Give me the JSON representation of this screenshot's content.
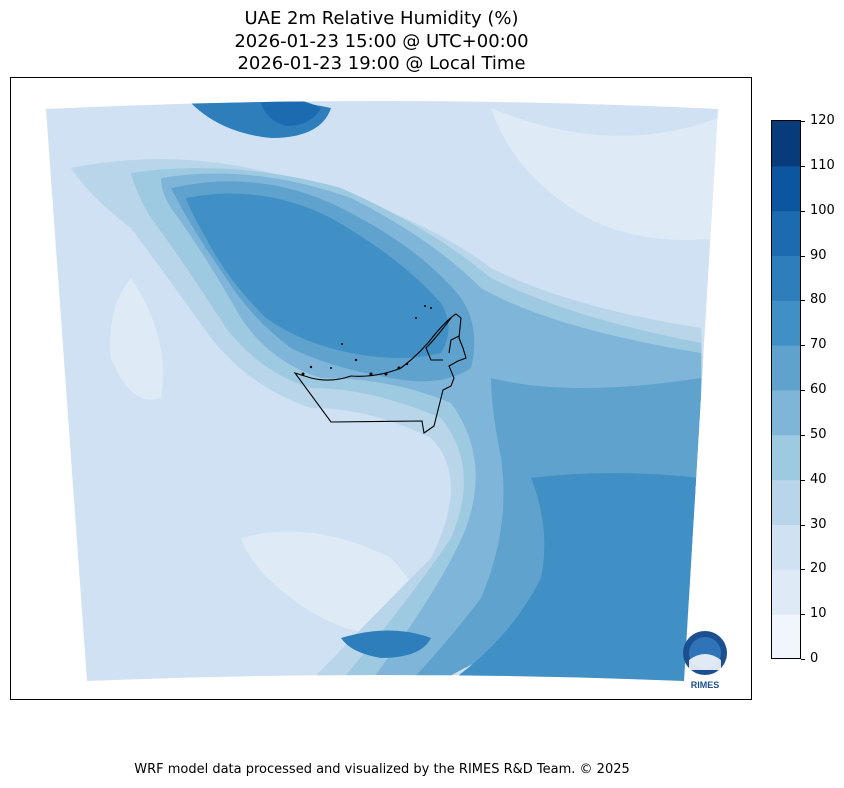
{
  "title": {
    "line1": "UAE 2m Relative Humidity (%)",
    "line2": "2026-01-23 15:00 @ UTC+00:00",
    "line3": "2026-01-23 19:00 @ Local Time"
  },
  "colorbar": {
    "ticks": [
      "0",
      "10",
      "20",
      "30",
      "40",
      "50",
      "60",
      "70",
      "80",
      "90",
      "100",
      "110",
      "120"
    ],
    "colors": [
      "#f0f6fc",
      "#deebf7",
      "#cfe1f2",
      "#b8d5ea",
      "#9ecae1",
      "#7fb5d9",
      "#5fa2ce",
      "#4090c5",
      "#2e7ebc",
      "#1c6aaf",
      "#0c56a0",
      "#083b7a"
    ]
  },
  "logo": {
    "text": "RIMES"
  },
  "footer": "WRF model data processed and visualized by the RIMES R&D Team. © 2025"
}
